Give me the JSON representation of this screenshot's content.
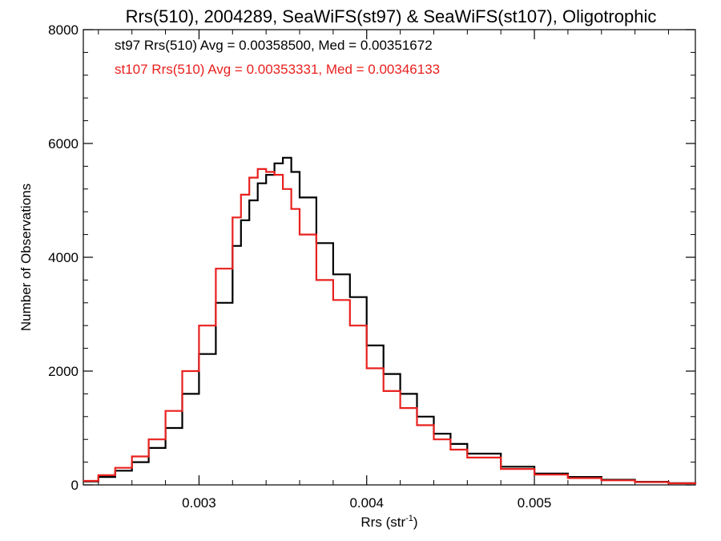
{
  "chart_data": {
    "type": "line",
    "title": "Rrs(510), 2004289, SeaWiFS(st97) & SeaWiFS(st107), Oligotrophic",
    "xlabel_main": "Rrs (str",
    "xlabel_sup": "-1",
    "xlabel_close": ")",
    "ylabel": "Number of Observations",
    "xlim": [
      0.00231,
      0.00596
    ],
    "ylim": [
      0,
      8000
    ],
    "x_ticks": [
      0.003,
      0.004,
      0.005
    ],
    "x_tick_labels": [
      "0.003",
      "0.004",
      "0.005"
    ],
    "y_ticks": [
      0,
      2000,
      4000,
      6000,
      8000
    ],
    "y_tick_labels": [
      "0",
      "2000",
      "4000",
      "6000",
      "8000"
    ],
    "grid": false,
    "legend_placement": "top-left",
    "series": [
      {
        "label": "st97 Rrs(510) Avg = 0.00358500, Med = 0.00351672",
        "color": "#000000",
        "x": [
          0.00231,
          0.0024,
          0.0025,
          0.0026,
          0.0027,
          0.0028,
          0.0029,
          0.003,
          0.0031,
          0.0032,
          0.00325,
          0.0033,
          0.00335,
          0.0034,
          0.00345,
          0.0035,
          0.00355,
          0.0036,
          0.0037,
          0.0038,
          0.0039,
          0.004,
          0.0041,
          0.0042,
          0.0043,
          0.0044,
          0.0045,
          0.0046,
          0.0048,
          0.005,
          0.0052,
          0.0054,
          0.0056,
          0.0058,
          0.00596
        ],
        "y": [
          60,
          140,
          250,
          400,
          650,
          1000,
          1600,
          2300,
          3200,
          4200,
          4650,
          5000,
          5300,
          5450,
          5650,
          5750,
          5500,
          5050,
          4250,
          3700,
          3300,
          2450,
          1950,
          1600,
          1200,
          900,
          720,
          550,
          320,
          200,
          140,
          90,
          55,
          30,
          15
        ]
      },
      {
        "label": "st107 Rrs(510) Avg = 0.00353331, Med = 0.00346133",
        "color": "#e8211f",
        "x": [
          0.00231,
          0.0024,
          0.0025,
          0.0026,
          0.0027,
          0.0028,
          0.0029,
          0.003,
          0.0031,
          0.0032,
          0.00325,
          0.0033,
          0.00335,
          0.0034,
          0.00345,
          0.0035,
          0.00355,
          0.0036,
          0.0037,
          0.0038,
          0.0039,
          0.004,
          0.0041,
          0.0042,
          0.0043,
          0.0044,
          0.0045,
          0.0046,
          0.0048,
          0.005,
          0.0052,
          0.0054,
          0.0056,
          0.0058,
          0.00596
        ],
        "y": [
          70,
          170,
          300,
          500,
          800,
          1300,
          2000,
          2800,
          3800,
          4700,
          5100,
          5400,
          5550,
          5500,
          5450,
          5200,
          4850,
          4400,
          3600,
          3250,
          2800,
          2050,
          1650,
          1350,
          1050,
          800,
          620,
          480,
          280,
          180,
          120,
          80,
          50,
          28,
          12
        ]
      }
    ]
  }
}
